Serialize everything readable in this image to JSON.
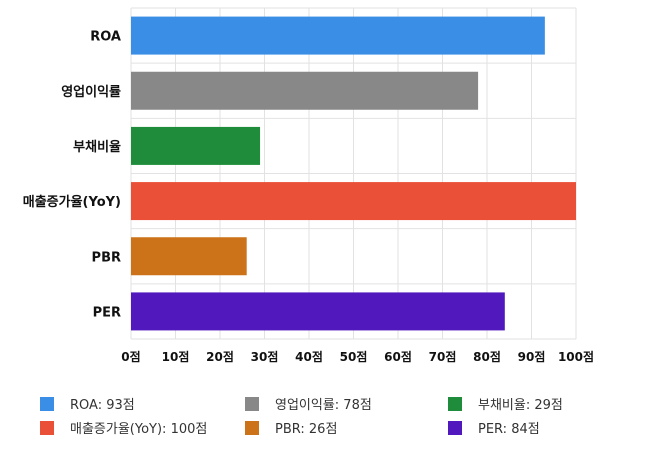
{
  "chart_data": {
    "type": "bar",
    "orientation": "horizontal",
    "categories": [
      "ROA",
      "영업이익률",
      "부채비율",
      "매출증가율(YoY)",
      "PBR",
      "PER"
    ],
    "values": [
      93,
      78,
      29,
      100,
      26,
      84
    ],
    "colors": [
      "#3a8ee6",
      "#888888",
      "#1e8c3a",
      "#ea5037",
      "#cc7218",
      "#5018bd"
    ],
    "xlim": [
      0,
      100
    ],
    "xticks": [
      0,
      10,
      20,
      30,
      40,
      50,
      60,
      70,
      80,
      90,
      100
    ],
    "tick_suffix": "점",
    "grid": true,
    "legend_position": "bottom",
    "legend": [
      "ROA: 93점",
      "영업이익률: 78점",
      "부채비율: 29점",
      "매출증가율(YoY): 100점",
      "PBR: 26점",
      "PER: 84점"
    ]
  }
}
